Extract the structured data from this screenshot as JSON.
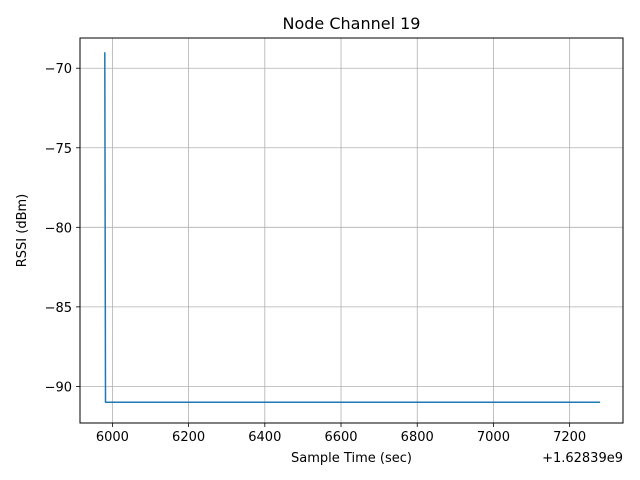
{
  "chart_data": {
    "type": "line",
    "title": "Node Channel 19",
    "xlabel": "Sample Time (sec)",
    "ylabel": "RSSI (dBm)",
    "x_offset_label": "+1.62839e9",
    "xlim": [
      5915,
      7340
    ],
    "ylim": [
      -92.3,
      -68.1
    ],
    "x_ticks": [
      6000,
      6200,
      6400,
      6600,
      6800,
      7000,
      7200
    ],
    "y_ticks": [
      -70,
      -75,
      -80,
      -85,
      -90
    ],
    "grid": true,
    "series": [
      {
        "color": "#1f77b4",
        "x": [
          5980,
          5982,
          5984,
          7280
        ],
        "y": [
          -69,
          -91,
          -91,
          -91
        ]
      }
    ]
  }
}
